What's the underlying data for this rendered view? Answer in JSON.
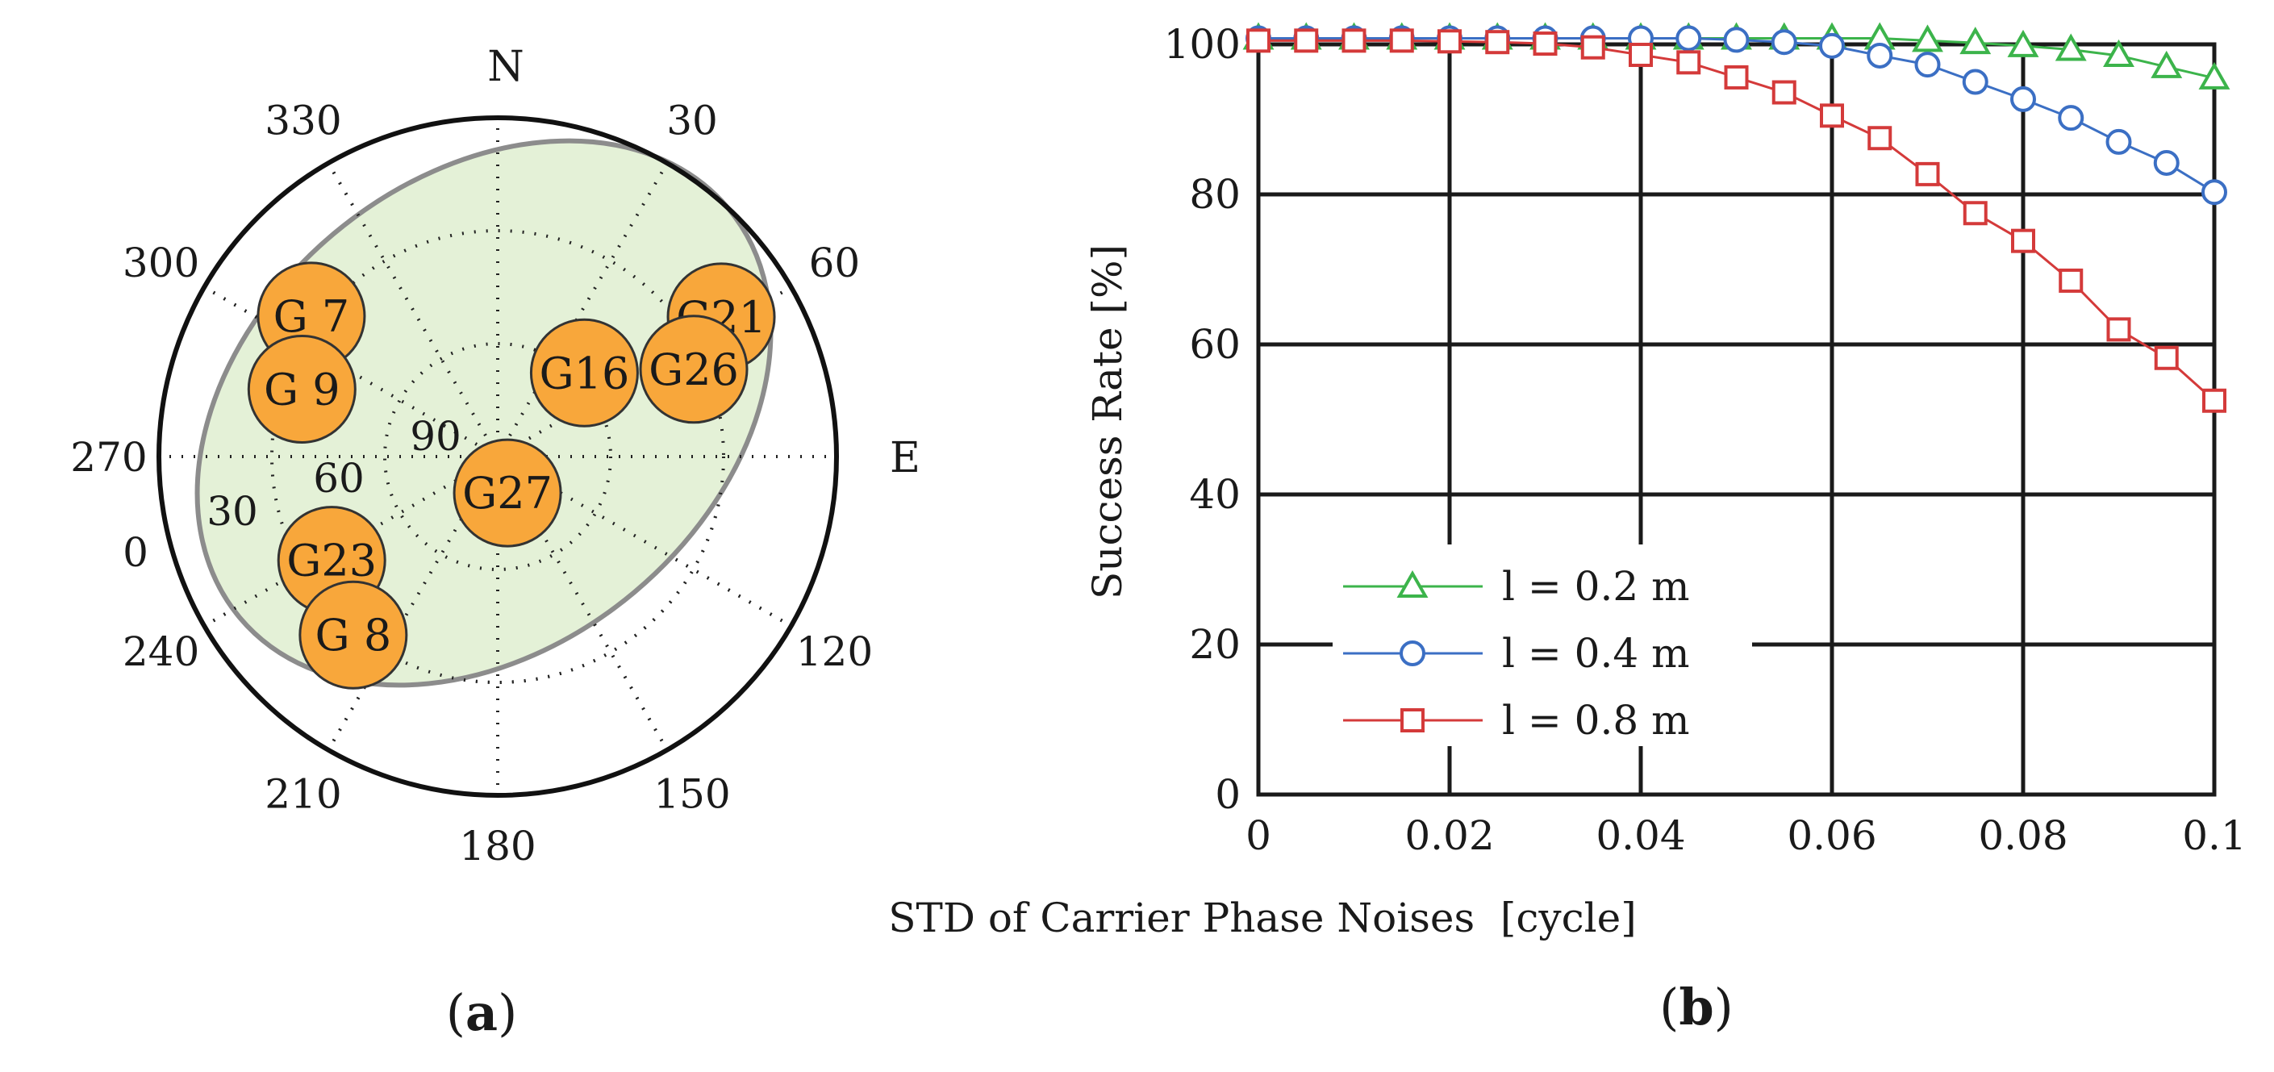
{
  "chart_data": [
    {
      "type": "polar-skyplot",
      "panel_label": "a",
      "compass_labels": {
        "north": "N",
        "east": "E"
      },
      "azimuth_labels": [
        {
          "deg": 330,
          "text": "330"
        },
        {
          "deg": 30,
          "text": "30"
        },
        {
          "deg": 300,
          "text": "300"
        },
        {
          "deg": 60,
          "text": "60"
        },
        {
          "deg": 270,
          "text": "270"
        },
        {
          "deg": 240,
          "text": "240"
        },
        {
          "deg": 120,
          "text": "120"
        },
        {
          "deg": 210,
          "text": "210"
        },
        {
          "deg": 150,
          "text": "150"
        },
        {
          "deg": 180,
          "text": "180"
        }
      ],
      "elevation_labels": [
        "90",
        "60",
        "30",
        "0"
      ],
      "elevation_rings": [
        0,
        30,
        60
      ],
      "satellites": [
        {
          "id": "G 7",
          "azimuth": 307,
          "elevation": 28
        },
        {
          "id": "G 9",
          "azimuth": 289,
          "elevation": 35
        },
        {
          "id": "G16",
          "azimuth": 46,
          "elevation": 58
        },
        {
          "id": "G21",
          "azimuth": 58,
          "elevation": 20
        },
        {
          "id": "G26",
          "azimuth": 66,
          "elevation": 33
        },
        {
          "id": "G27",
          "azimuth": 165,
          "elevation": 80
        },
        {
          "id": "G23",
          "azimuth": 238,
          "elevation": 38
        },
        {
          "id": "G 8",
          "azimuth": 219,
          "elevation": 29
        }
      ],
      "colors": {
        "satellite": "#f8a73b",
        "region": "#e2f0d4",
        "region_edge": "#8c8c8c"
      }
    },
    {
      "type": "line",
      "panel_label": "b",
      "xlabel": "STD of Carrier Phase Noises  [cycle]",
      "ylabel": "Success Rate [%]",
      "xlim": [
        0,
        0.1
      ],
      "ylim": [
        0,
        100
      ],
      "xticks": [
        0,
        0.02,
        0.04,
        0.06,
        0.08,
        0.1
      ],
      "xtick_labels": [
        "0",
        "0.02",
        "0.04",
        "0.06",
        "0.08",
        "0.1"
      ],
      "yticks": [
        0,
        20,
        40,
        60,
        80,
        100
      ],
      "ytick_labels": [
        "0",
        "20",
        "40",
        "60",
        "80",
        "100"
      ],
      "grid": true,
      "legend_position": "bottom-left",
      "x": [
        0,
        0.005,
        0.01,
        0.015,
        0.02,
        0.025,
        0.03,
        0.035,
        0.04,
        0.045,
        0.05,
        0.055,
        0.06,
        0.065,
        0.07,
        0.075,
        0.08,
        0.085,
        0.09,
        0.095,
        0.1
      ],
      "series": [
        {
          "name": "l = 0.2 m",
          "marker": "triangle",
          "color": "#3cb44b",
          "values": [
            100.8,
            100.8,
            100.8,
            100.8,
            100.8,
            100.8,
            100.8,
            100.8,
            100.8,
            100.8,
            100.8,
            100.8,
            100.8,
            100.8,
            100.5,
            100.2,
            99.8,
            99.3,
            98.5,
            97.0,
            95.5
          ]
        },
        {
          "name": "l = 0.4 m",
          "marker": "circle",
          "color": "#3b6fc4",
          "values": [
            100.8,
            100.8,
            100.8,
            100.8,
            100.8,
            100.8,
            100.8,
            100.8,
            100.8,
            100.8,
            100.6,
            100.3,
            99.8,
            98.5,
            97.3,
            95.0,
            92.7,
            90.2,
            87.0,
            84.2,
            80.3
          ]
        },
        {
          "name": "l = 0.8 m",
          "marker": "square",
          "color": "#d43a3a",
          "values": [
            100.5,
            100.5,
            100.5,
            100.5,
            100.4,
            100.3,
            100.1,
            99.6,
            98.6,
            97.6,
            95.6,
            93.6,
            90.5,
            87.5,
            82.7,
            77.5,
            73.8,
            68.5,
            62.0,
            58.2,
            52.5
          ]
        }
      ]
    }
  ],
  "captions": [
    {
      "open": "(",
      "letter": "a",
      "close": ")"
    },
    {
      "open": "(",
      "letter": "b",
      "close": ")"
    }
  ]
}
